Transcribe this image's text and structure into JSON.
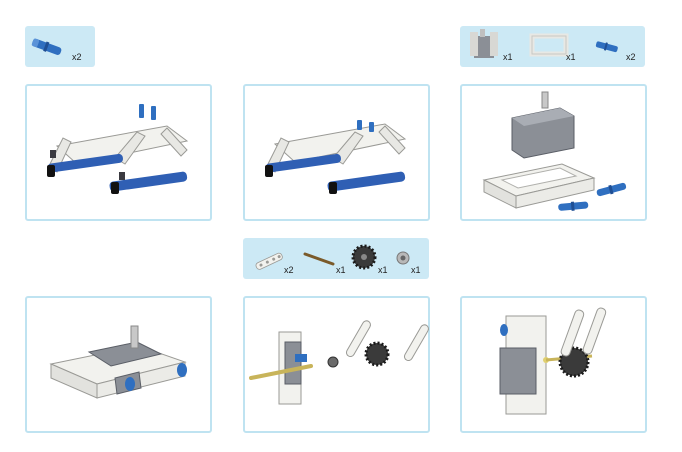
{
  "parts_lists": [
    {
      "items": [
        {
          "name": "blue-pin-icon",
          "qty": "x2"
        }
      ]
    },
    {
      "items": [
        {
          "name": "servo-motor-icon",
          "qty": "x1"
        },
        {
          "name": "beam-frame-icon",
          "qty": "x1"
        },
        {
          "name": "blue-pin-icon",
          "qty": "x2"
        }
      ]
    },
    {
      "items": [
        {
          "name": "white-beam-icon",
          "qty": "x2"
        },
        {
          "name": "axle-icon",
          "qty": "x1"
        },
        {
          "name": "gear-icon",
          "qty": "x1"
        },
        {
          "name": "bushing-icon",
          "qty": "x1"
        }
      ]
    }
  ],
  "steps": [
    {
      "name": "step-chassis-pins"
    },
    {
      "name": "step-chassis-assembled"
    },
    {
      "name": "step-servo-frame-pins"
    },
    {
      "name": "step-servo-in-frame"
    },
    {
      "name": "step-gear-axle-assembly"
    },
    {
      "name": "step-gear-mounted"
    }
  ],
  "colors": {
    "panel_border": "#bfe3f1",
    "parts_bg": "#cce9f5",
    "pin_blue": "#2f6fc0",
    "beam_white": "#f2f2ee",
    "servo_gray": "#7c8088"
  }
}
